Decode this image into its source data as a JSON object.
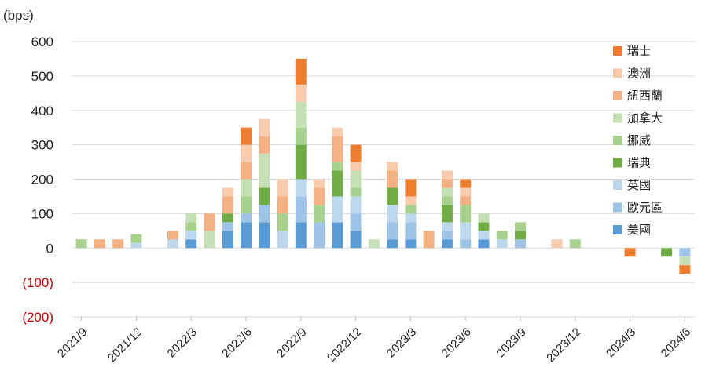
{
  "chart_data": {
    "type": "bar",
    "stacked": true,
    "y_unit": "(bps)",
    "ylim": [
      -200,
      600
    ],
    "y_ticks": [
      {
        "value": 600,
        "label": "600"
      },
      {
        "value": 500,
        "label": "500"
      },
      {
        "value": 400,
        "label": "400"
      },
      {
        "value": 300,
        "label": "300"
      },
      {
        "value": 200,
        "label": "200"
      },
      {
        "value": 100,
        "label": "100"
      },
      {
        "value": 0,
        "label": "0"
      },
      {
        "value": -100,
        "label": "(100)"
      },
      {
        "value": -200,
        "label": "(200)"
      }
    ],
    "negative_label_color": "#c00000",
    "grid": true,
    "legend_position": "right",
    "categories": [
      "2021/9",
      "2021/10",
      "2021/11",
      "2021/12",
      "2022/1",
      "2022/2",
      "2022/3",
      "2022/4",
      "2022/5",
      "2022/6",
      "2022/7",
      "2022/8",
      "2022/9",
      "2022/10",
      "2022/11",
      "2022/12",
      "2023/1",
      "2023/2",
      "2023/3",
      "2023/4",
      "2023/5",
      "2023/6",
      "2023/7",
      "2023/8",
      "2023/9",
      "2023/10",
      "2023/11",
      "2023/12",
      "2024/1",
      "2024/2",
      "2024/3",
      "2024/4",
      "2024/5",
      "2024/6"
    ],
    "x_tick_labels": [
      "2021/9",
      "2021/12",
      "2022/3",
      "2022/6",
      "2022/9",
      "2022/12",
      "2023/3",
      "2023/6",
      "2023/9",
      "2023/12",
      "2024/3",
      "2024/6"
    ],
    "x_tick_every": 3,
    "series": [
      {
        "name": "美國",
        "color": "#5b9bd5",
        "values": [
          0,
          0,
          0,
          0,
          0,
          0,
          25,
          0,
          50,
          75,
          75,
          0,
          75,
          0,
          75,
          50,
          0,
          25,
          25,
          0,
          25,
          0,
          25,
          0,
          0,
          0,
          0,
          0,
          0,
          0,
          0,
          0,
          0,
          0
        ]
      },
      {
        "name": "歐元區",
        "color": "#9dc3e6",
        "values": [
          0,
          0,
          0,
          0,
          0,
          0,
          0,
          0,
          25,
          25,
          50,
          0,
          75,
          75,
          0,
          50,
          0,
          50,
          50,
          0,
          25,
          25,
          0,
          0,
          25,
          0,
          0,
          0,
          0,
          0,
          0,
          0,
          0,
          -25
        ]
      },
      {
        "name": "英國",
        "color": "#bdd7ee",
        "values": [
          0,
          0,
          0,
          15,
          0,
          25,
          25,
          0,
          0,
          0,
          0,
          50,
          50,
          0,
          75,
          50,
          0,
          50,
          25,
          0,
          25,
          50,
          25,
          25,
          0,
          0,
          0,
          0,
          0,
          0,
          0,
          0,
          0,
          0
        ]
      },
      {
        "name": "瑞典",
        "color": "#70ad47",
        "values": [
          0,
          0,
          0,
          0,
          0,
          0,
          0,
          0,
          25,
          0,
          50,
          0,
          100,
          0,
          75,
          0,
          0,
          50,
          0,
          0,
          50,
          0,
          25,
          0,
          25,
          0,
          0,
          0,
          0,
          0,
          0,
          0,
          -25,
          0
        ]
      },
      {
        "name": "挪威",
        "color": "#a9d18e",
        "values": [
          25,
          0,
          0,
          25,
          0,
          0,
          25,
          0,
          0,
          50,
          0,
          50,
          50,
          50,
          25,
          25,
          0,
          0,
          25,
          0,
          25,
          50,
          0,
          25,
          25,
          0,
          0,
          25,
          0,
          0,
          0,
          0,
          0,
          0
        ]
      },
      {
        "name": "加拿大",
        "color": "#c5e0b4",
        "values": [
          0,
          0,
          0,
          0,
          0,
          0,
          25,
          50,
          0,
          50,
          100,
          0,
          75,
          0,
          0,
          50,
          25,
          0,
          0,
          0,
          25,
          0,
          25,
          0,
          0,
          0,
          0,
          0,
          0,
          0,
          0,
          0,
          0,
          -25
        ]
      },
      {
        "name": "紐西蘭",
        "color": "#f4b183",
        "values": [
          0,
          25,
          25,
          0,
          0,
          25,
          0,
          50,
          50,
          50,
          50,
          50,
          0,
          50,
          75,
          0,
          0,
          50,
          0,
          50,
          25,
          25,
          0,
          0,
          0,
          0,
          0,
          0,
          0,
          0,
          0,
          0,
          0,
          0
        ]
      },
      {
        "name": "澳洲",
        "color": "#f8cbad",
        "values": [
          0,
          0,
          0,
          0,
          0,
          0,
          0,
          0,
          25,
          50,
          50,
          50,
          50,
          25,
          25,
          25,
          0,
          25,
          25,
          0,
          25,
          25,
          0,
          0,
          0,
          0,
          25,
          0,
          0,
          0,
          0,
          0,
          0,
          0
        ]
      },
      {
        "name": "瑞士",
        "color": "#ed7d31",
        "values": [
          0,
          0,
          0,
          0,
          0,
          0,
          0,
          0,
          0,
          50,
          0,
          0,
          75,
          0,
          0,
          50,
          0,
          0,
          50,
          0,
          0,
          25,
          0,
          0,
          0,
          0,
          0,
          0,
          0,
          0,
          -25,
          0,
          0,
          -25
        ]
      }
    ]
  }
}
